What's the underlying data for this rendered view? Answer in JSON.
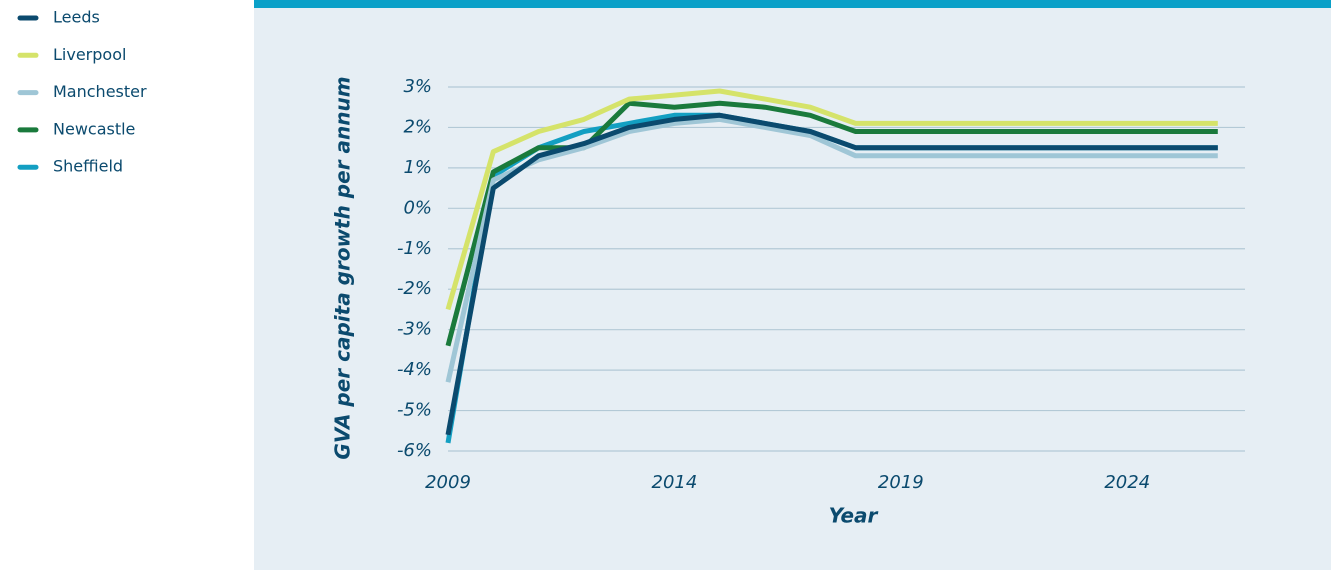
{
  "chart_data": {
    "type": "line",
    "xlabel": "Year",
    "ylabel": "GVA per capita growth per annum",
    "x": [
      2009,
      2010,
      2011,
      2012,
      2013,
      2014,
      2015,
      2016,
      2017,
      2018,
      2019,
      2020,
      2021,
      2022,
      2023,
      2024,
      2025,
      2026
    ],
    "series": [
      {
        "name": "Leeds",
        "color": "#0b4a6e",
        "values": [
          -5.6,
          0.5,
          1.3,
          1.6,
          2.0,
          2.2,
          2.3,
          2.1,
          1.9,
          1.5,
          1.5,
          1.5,
          1.5,
          1.5,
          1.5,
          1.5,
          1.5,
          1.5
        ]
      },
      {
        "name": "Liverpool",
        "color": "#d5e36a",
        "values": [
          -2.5,
          1.4,
          1.9,
          2.2,
          2.7,
          2.8,
          2.9,
          2.7,
          2.5,
          2.1,
          2.1,
          2.1,
          2.1,
          2.1,
          2.1,
          2.1,
          2.1,
          2.1
        ]
      },
      {
        "name": "Manchester",
        "color": "#9fc6d6",
        "values": [
          -4.3,
          0.7,
          1.2,
          1.5,
          1.9,
          2.1,
          2.2,
          2.0,
          1.8,
          1.3,
          1.3,
          1.3,
          1.3,
          1.3,
          1.3,
          1.3,
          1.3,
          1.3
        ]
      },
      {
        "name": "Newcastle",
        "color": "#1a7a3c",
        "values": [
          -3.4,
          0.9,
          1.5,
          1.5,
          2.6,
          2.5,
          2.6,
          2.5,
          2.3,
          1.9,
          1.9,
          1.9,
          1.9,
          1.9,
          1.9,
          1.9,
          1.9,
          1.9
        ]
      },
      {
        "name": "Sheffield",
        "color": "#139fc2",
        "values": [
          -5.8,
          0.8,
          1.5,
          1.9,
          2.1,
          2.3,
          2.3,
          2.1,
          1.9,
          1.5,
          1.5,
          1.5,
          1.5,
          1.5,
          1.5,
          1.5,
          1.5,
          1.5
        ]
      }
    ],
    "xlim": [
      2009,
      2026.6
    ],
    "xticks": [
      2009,
      2014,
      2019,
      2024
    ],
    "ylim": [
      -6,
      3
    ],
    "yticks": [
      {
        "value": -6,
        "label": "-6%"
      },
      {
        "value": -5,
        "label": "-5%"
      },
      {
        "value": -4,
        "label": "-4%"
      },
      {
        "value": -3,
        "label": "-3%"
      },
      {
        "value": -2,
        "label": "-2%"
      },
      {
        "value": -1,
        "label": "-1%"
      },
      {
        "value": 0,
        "label": "0%"
      },
      {
        "value": 1,
        "label": "1%"
      },
      {
        "value": 2,
        "label": "2%"
      },
      {
        "value": 3,
        "label": "3%"
      }
    ],
    "grid": true
  }
}
